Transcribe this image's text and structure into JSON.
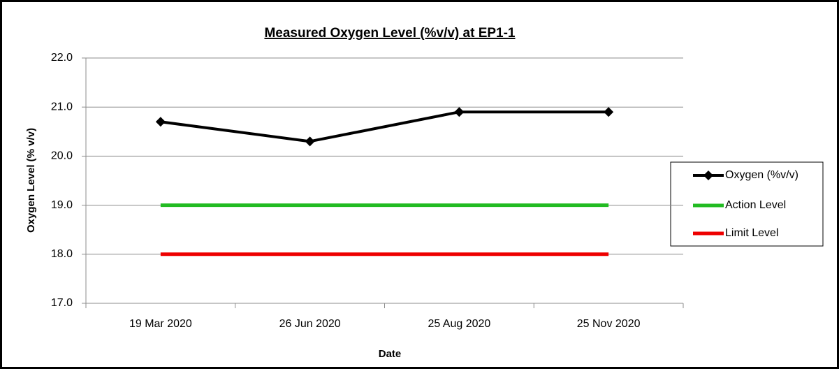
{
  "chart_data": {
    "type": "line",
    "title": "Measured Oxygen Level (%v/v) at EP1-1",
    "x_label": "Date",
    "y_label": "Oxygen Level (% v/v)",
    "categories": [
      "19 Mar 2020",
      "26 Jun 2020",
      "25 Aug 2020",
      "25 Nov 2020"
    ],
    "series": [
      {
        "name": "Oxygen (%v/v)",
        "color": "#000000",
        "marker": "diamond",
        "values": [
          20.7,
          20.3,
          20.9,
          20.9
        ]
      },
      {
        "name": "Action Level",
        "color": "#22bb22",
        "values": [
          19,
          19,
          19,
          19
        ]
      },
      {
        "name": "Limit Level",
        "color": "#ee0000",
        "values": [
          18,
          18,
          18,
          18
        ]
      }
    ],
    "ylim": [
      17,
      22
    ],
    "yticks": [
      {
        "value": 17,
        "label": "17.0"
      },
      {
        "value": 18,
        "label": "18.0"
      },
      {
        "value": 19,
        "label": "19.0"
      },
      {
        "value": 20,
        "label": "20.0"
      },
      {
        "value": 21,
        "label": "21.0"
      },
      {
        "value": 22,
        "label": "22.0"
      }
    ],
    "grid": true,
    "legend": "right"
  }
}
